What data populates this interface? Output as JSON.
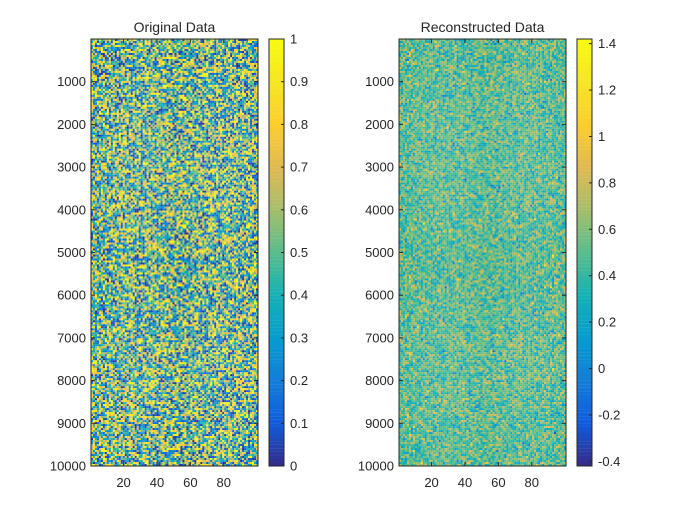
{
  "chart_data": [
    {
      "type": "heatmap",
      "title": "Original Data",
      "x_range": [
        1,
        100
      ],
      "y_range": [
        1,
        10000
      ],
      "y_reversed": true,
      "x_ticks": [
        20,
        40,
        60,
        80
      ],
      "y_ticks": [
        1000,
        2000,
        3000,
        4000,
        5000,
        6000,
        7000,
        8000,
        9000,
        10000
      ],
      "value_range": [
        0,
        1
      ],
      "colormap": "parula",
      "distribution": "uniform noise between 0 and 1",
      "colorbar": {
        "limits": [
          0,
          1
        ],
        "ticks": [
          0,
          0.1,
          0.2,
          0.3,
          0.4,
          0.5,
          0.6,
          0.7,
          0.8,
          0.9,
          1
        ],
        "tick_labels": [
          "0",
          "0.1",
          "0.2",
          "0.3",
          "0.4",
          "0.5",
          "0.6",
          "0.7",
          "0.8",
          "0.9",
          "1"
        ]
      }
    },
    {
      "type": "heatmap",
      "title": "Reconstructed Data",
      "x_range": [
        1,
        100
      ],
      "y_range": [
        1,
        10000
      ],
      "y_reversed": true,
      "x_ticks": [
        20,
        40,
        60,
        80
      ],
      "y_ticks": [
        1000,
        2000,
        3000,
        4000,
        5000,
        6000,
        7000,
        8000,
        9000,
        10000
      ],
      "value_range": [
        -0.42,
        1.42
      ],
      "value_mean": 0.5,
      "value_spread": 0.2,
      "colormap": "parula",
      "distribution": "noise concentrated around 0.5",
      "colorbar": {
        "limits": [
          -0.42,
          1.42
        ],
        "ticks": [
          -0.4,
          -0.2,
          0,
          0.2,
          0.4,
          0.6,
          0.8,
          1,
          1.2,
          1.4
        ],
        "tick_labels": [
          "-0.4",
          "-0.2",
          "0",
          "0.2",
          "0.4",
          "0.6",
          "0.8",
          "1",
          "1.2",
          "1.4"
        ]
      }
    }
  ]
}
